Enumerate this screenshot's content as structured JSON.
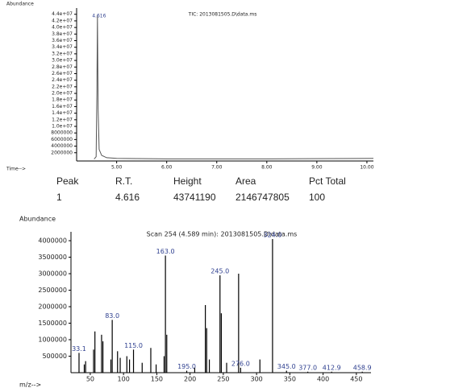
{
  "chart_data": [
    {
      "type": "line",
      "title": "TIC: 2013081505.D\\data.ms",
      "ylabel": "Abundance",
      "xlabel": "Time-->",
      "x": [
        4.55,
        4.59,
        4.605,
        4.616,
        4.63,
        4.65,
        4.7,
        4.8,
        5.0,
        6.0,
        8.0,
        9.8,
        10.13
      ],
      "y": [
        100000,
        800000,
        20000000,
        43741190,
        15000000,
        3000000,
        1200000,
        500000,
        300000,
        150000,
        150000,
        250000,
        300000
      ],
      "peak_label": "4.616",
      "color": "#555555",
      "label_color": "#2e3f8f",
      "xlim": [
        4.2,
        10.13
      ],
      "xticks": [
        {
          "value": 5,
          "label": "5.00"
        },
        {
          "value": 6,
          "label": "6.00"
        },
        {
          "value": 7,
          "label": "7.00"
        },
        {
          "value": 8,
          "label": "8.00"
        },
        {
          "value": 9,
          "label": "9.00"
        },
        {
          "value": 10,
          "label": "10.00"
        }
      ],
      "ylim": [
        -500000,
        45400000
      ],
      "yticks": [
        {
          "value": 44000000,
          "label": "4.4e+07"
        },
        {
          "value": 42000000,
          "label": "4.2e+07"
        },
        {
          "value": 40000000,
          "label": "4.0e+07"
        },
        {
          "value": 38000000,
          "label": "3.8e+07"
        },
        {
          "value": 36000000,
          "label": "3.6e+07"
        },
        {
          "value": 34000000,
          "label": "3.4e+07"
        },
        {
          "value": 32000000,
          "label": "3.2e+07"
        },
        {
          "value": 30000000,
          "label": "3.0e+07"
        },
        {
          "value": 28000000,
          "label": "2.8e+07"
        },
        {
          "value": 26000000,
          "label": "2.6e+07"
        },
        {
          "value": 24000000,
          "label": "2.4e+07"
        },
        {
          "value": 22000000,
          "label": "2.2e+07"
        },
        {
          "value": 20000000,
          "label": "2.0e+07"
        },
        {
          "value": 18000000,
          "label": "1.8e+07"
        },
        {
          "value": 16000000,
          "label": "1.6e+07"
        },
        {
          "value": 14000000,
          "label": "1.4e+07"
        },
        {
          "value": 12000000,
          "label": "1.2e+07"
        },
        {
          "value": 10000000,
          "label": "1.0e+07"
        },
        8000000,
        6000000,
        4000000,
        2000000
      ]
    },
    {
      "type": "stem",
      "title": "Scan 254 (4.589 min): 2013081505.D\\data.ms",
      "ylabel": "Abundance",
      "xlabel": "m/z-->",
      "x": [
        33.1,
        41,
        43,
        55,
        57,
        67,
        69,
        81,
        83,
        91,
        95,
        105,
        109,
        115,
        128,
        141,
        149,
        161,
        163,
        165,
        195,
        207,
        223,
        225,
        229,
        245,
        247,
        255,
        273,
        276,
        305,
        324,
        345,
        377,
        412.9,
        458.9
      ],
      "values": [
        600000,
        250000,
        350000,
        700000,
        1250000,
        1150000,
        950000,
        400000,
        1600000,
        650000,
        450000,
        500000,
        400000,
        700000,
        300000,
        750000,
        250000,
        500000,
        3550000,
        1150000,
        60000,
        150000,
        2050000,
        1350000,
        400000,
        2950000,
        1800000,
        300000,
        3000000,
        150000,
        400000,
        4050000,
        60000,
        30000,
        30000,
        30000
      ],
      "x_labels": [
        "33.1",
        null,
        null,
        null,
        null,
        null,
        null,
        null,
        "83.0",
        null,
        null,
        null,
        null,
        "115.0",
        null,
        null,
        null,
        null,
        "163.0",
        null,
        "195.0",
        null,
        null,
        null,
        null,
        "245.0",
        null,
        null,
        null,
        "276.0",
        null,
        "324.0",
        "345.0",
        "377.0",
        "412.9",
        "458.9"
      ],
      "color": "#000000",
      "label_color": "#2e3f8f",
      "xlim": [
        21,
        472
      ],
      "xticks": [
        50,
        100,
        150,
        200,
        250,
        300,
        350,
        400,
        450
      ],
      "ylim": [
        0,
        4220000
      ],
      "yticks": [
        500000,
        1000000,
        1500000,
        2000000,
        2500000,
        3000000,
        3500000,
        4000000
      ]
    }
  ],
  "table": {
    "header": [
      "Peak",
      "R.T.",
      "Height",
      "Area",
      "Pct Total"
    ],
    "rows": [
      [
        1,
        4.616,
        43741190,
        2146747805,
        100
      ]
    ]
  }
}
